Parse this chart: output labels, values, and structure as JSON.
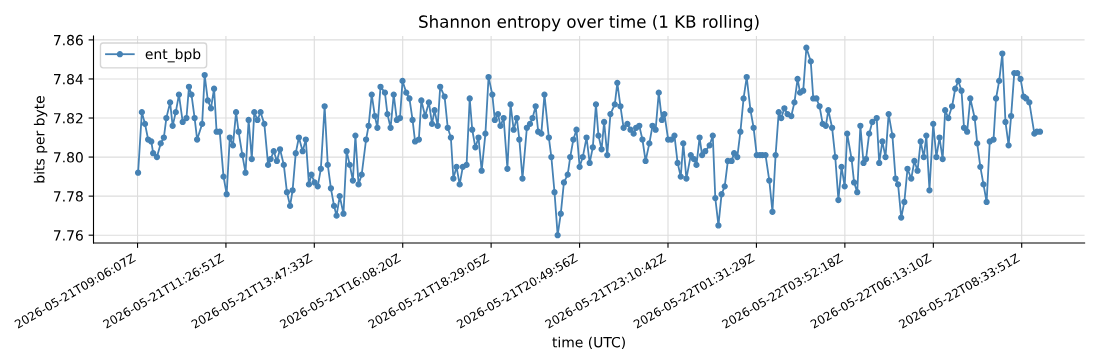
{
  "chart_data": {
    "type": "line",
    "title": "Shannon entropy over time (1 KB rolling)",
    "xlabel": "time (UTC)",
    "ylabel": "bits per byte",
    "xlim": [
      "2026-05-21T07:56",
      "2026-05-22T10:14"
    ],
    "ylim": [
      7.756,
      7.862
    ],
    "xticks": [
      {
        "value": "2026-05-21T09:06:07",
        "label": "2026-05-21T09:06:07Z"
      },
      {
        "value": "2026-05-21T11:26:51",
        "label": "2026-05-21T11:26:51Z"
      },
      {
        "value": "2026-05-21T13:47:33",
        "label": "2026-05-21T13:47:33Z"
      },
      {
        "value": "2026-05-21T16:08:20",
        "label": "2026-05-21T16:08:20Z"
      },
      {
        "value": "2026-05-21T18:29:05",
        "label": "2026-05-21T18:29:05Z"
      },
      {
        "value": "2026-05-21T20:49:56",
        "label": "2026-05-21T20:49:56Z"
      },
      {
        "value": "2026-05-21T23:10:42",
        "label": "2026-05-21T23:10:42Z"
      },
      {
        "value": "2026-05-22T01:31:29",
        "label": "2026-05-22T01:31:29Z"
      },
      {
        "value": "2026-05-22T03:52:18",
        "label": "2026-05-22T03:52:18Z"
      },
      {
        "value": "2026-05-22T06:13:10",
        "label": "2026-05-22T06:13:10Z"
      },
      {
        "value": "2026-05-22T08:33:51",
        "label": "2026-05-22T08:33:51Z"
      }
    ],
    "yticks": [
      {
        "value": 7.76,
        "label": "7.76"
      },
      {
        "value": 7.78,
        "label": "7.78"
      },
      {
        "value": 7.8,
        "label": "7.80"
      },
      {
        "value": 7.82,
        "label": "7.82"
      },
      {
        "value": 7.84,
        "label": "7.84"
      },
      {
        "value": 7.86,
        "label": "7.86"
      }
    ],
    "grid": true,
    "legend": "top left",
    "marker": "circle",
    "line_style": "solid",
    "series": [
      {
        "name": "ent_bpb",
        "color": "#4682b4",
        "x": [
          "2026-05-21T09:07",
          "2026-05-21T09:13",
          "2026-05-21T09:18",
          "2026-05-21T09:23",
          "2026-05-21T09:28",
          "2026-05-21T09:31",
          "2026-05-21T09:37",
          "2026-05-21T09:43",
          "2026-05-21T09:48",
          "2026-05-21T09:52",
          "2026-05-21T09:58",
          "2026-05-21T10:02",
          "2026-05-21T10:07",
          "2026-05-21T10:12",
          "2026-05-21T10:18",
          "2026-05-21T10:24",
          "2026-05-21T10:28",
          "2026-05-21T10:32",
          "2026-05-21T10:37",
          "2026-05-21T10:41",
          "2026-05-21T10:49",
          "2026-05-21T10:53",
          "2026-05-21T10:58",
          "2026-05-21T11:03",
          "2026-05-21T11:08",
          "2026-05-21T11:12",
          "2026-05-21T11:17",
          "2026-05-21T11:23",
          "2026-05-21T11:28",
          "2026-05-21T11:33",
          "2026-05-21T11:38",
          "2026-05-21T11:43",
          "2026-05-21T11:47",
          "2026-05-21T11:53",
          "2026-05-21T11:58",
          "2026-05-21T12:03",
          "2026-05-21T12:08",
          "2026-05-21T12:12",
          "2026-05-21T12:17",
          "2026-05-21T12:22",
          "2026-05-21T12:28",
          "2026-05-21T12:34",
          "2026-05-21T12:38",
          "2026-05-21T12:43",
          "2026-05-21T12:48",
          "2026-05-21T12:53",
          "2026-05-21T12:59",
          "2026-05-21T13:04",
          "2026-05-21T13:09",
          "2026-05-21T13:13",
          "2026-05-21T13:18",
          "2026-05-21T13:23",
          "2026-05-21T13:29",
          "2026-05-21T13:34",
          "2026-05-21T13:39",
          "2026-05-21T13:43",
          "2026-05-21T13:48",
          "2026-05-21T13:53",
          "2026-05-21T13:58",
          "2026-05-21T14:04",
          "2026-05-21T14:09",
          "2026-05-21T14:14",
          "2026-05-21T14:19",
          "2026-05-21T14:23",
          "2026-05-21T14:28",
          "2026-05-21T14:34",
          "2026-05-21T14:39",
          "2026-05-21T14:44",
          "2026-05-21T14:49",
          "2026-05-21T14:53",
          "2026-05-21T14:58",
          "2026-05-21T15:03",
          "2026-05-21T15:10",
          "2026-05-21T15:14",
          "2026-05-21T15:19",
          "2026-05-21T15:24",
          "2026-05-21T15:28",
          "2026-05-21T15:33",
          "2026-05-21T15:40",
          "2026-05-21T15:44",
          "2026-05-21T15:49",
          "2026-05-21T15:54",
          "2026-05-21T15:59",
          "2026-05-21T16:04",
          "2026-05-21T16:08",
          "2026-05-21T16:14",
          "2026-05-21T16:19",
          "2026-05-21T16:24",
          "2026-05-21T16:28",
          "2026-05-21T16:34",
          "2026-05-21T16:38",
          "2026-05-21T16:44",
          "2026-05-21T16:50",
          "2026-05-21T16:55",
          "2026-05-21T16:59",
          "2026-05-21T17:04",
          "2026-05-21T17:08",
          "2026-05-21T17:15",
          "2026-05-21T17:20",
          "2026-05-21T17:25",
          "2026-05-21T17:29",
          "2026-05-21T17:34",
          "2026-05-21T17:39",
          "2026-05-21T17:44",
          "2026-05-21T17:50",
          "2026-05-21T17:55",
          "2026-05-21T17:59",
          "2026-05-21T18:04",
          "2026-05-21T18:09",
          "2026-05-21T18:14",
          "2026-05-21T18:20",
          "2026-05-21T18:25",
          "2026-05-21T18:31",
          "2026-05-21T18:35",
          "2026-05-21T18:40",
          "2026-05-21T18:44",
          "2026-05-21T18:49",
          "2026-05-21T18:55",
          "2026-05-21T19:00",
          "2026-05-21T19:05",
          "2026-05-21T19:10",
          "2026-05-21T19:14",
          "2026-05-21T19:19",
          "2026-05-21T19:26",
          "2026-05-21T19:31",
          "2026-05-21T19:35",
          "2026-05-21T19:40",
          "2026-05-21T19:44",
          "2026-05-21T19:49",
          "2026-05-21T19:54",
          "2026-05-21T20:01",
          "2026-05-21T20:05",
          "2026-05-21T20:10",
          "2026-05-21T20:15",
          "2026-05-21T20:20",
          "2026-05-21T20:25",
          "2026-05-21T20:31",
          "2026-05-21T20:35",
          "2026-05-21T20:40",
          "2026-05-21T20:45",
          "2026-05-21T20:50",
          "2026-05-21T20:55",
          "2026-05-21T21:01",
          "2026-05-21T21:06",
          "2026-05-21T21:11",
          "2026-05-21T21:16",
          "2026-05-21T21:20",
          "2026-05-21T21:25",
          "2026-05-21T21:29",
          "2026-05-21T21:34",
          "2026-05-21T21:39",
          "2026-05-21T21:46",
          "2026-05-21T21:50",
          "2026-05-21T21:55",
          "2026-05-21T22:00",
          "2026-05-21T22:06",
          "2026-05-21T22:11",
          "2026-05-21T22:16",
          "2026-05-21T22:20",
          "2026-05-21T22:25",
          "2026-05-21T22:30",
          "2026-05-21T22:35",
          "2026-05-21T22:41",
          "2026-05-21T22:46",
          "2026-05-21T22:51",
          "2026-05-21T22:56",
          "2026-05-21T23:01",
          "2026-05-21T23:05",
          "2026-05-21T23:11",
          "2026-05-21T23:16",
          "2026-05-21T23:21",
          "2026-05-21T23:26",
          "2026-05-21T23:31",
          "2026-05-21T23:35",
          "2026-05-21T23:40",
          "2026-05-21T23:47",
          "2026-05-21T23:52",
          "2026-05-21T23:56",
          "2026-05-22T00:01",
          "2026-05-22T00:05",
          "2026-05-22T00:10",
          "2026-05-22T00:17",
          "2026-05-22T00:22",
          "2026-05-22T00:26",
          "2026-05-22T00:31",
          "2026-05-22T00:36",
          "2026-05-22T00:41",
          "2026-05-22T00:46",
          "2026-05-22T00:52",
          "2026-05-22T00:56",
          "2026-05-22T01:01",
          "2026-05-22T01:06",
          "2026-05-22T01:11",
          "2026-05-22T01:16",
          "2026-05-22T01:22",
          "2026-05-22T01:27",
          "2026-05-22T01:32",
          "2026-05-22T01:37",
          "2026-05-22T01:41",
          "2026-05-22T01:46",
          "2026-05-22T01:52",
          "2026-05-22T01:57",
          "2026-05-22T02:02",
          "2026-05-22T02:07",
          "2026-05-22T02:11",
          "2026-05-22T02:16",
          "2026-05-22T02:21",
          "2026-05-22T02:27",
          "2026-05-22T02:32",
          "2026-05-22T02:37",
          "2026-05-22T02:41",
          "2026-05-22T02:46",
          "2026-05-22T02:51",
          "2026-05-22T02:58",
          "2026-05-22T03:02",
          "2026-05-22T03:07",
          "2026-05-22T03:12",
          "2026-05-22T03:17",
          "2026-05-22T03:22",
          "2026-05-22T03:26",
          "2026-05-22T03:32",
          "2026-05-22T03:37",
          "2026-05-22T03:42",
          "2026-05-22T03:47",
          "2026-05-22T03:52",
          "2026-05-22T03:56",
          "2026-05-22T04:03",
          "2026-05-22T04:07",
          "2026-05-22T04:12",
          "2026-05-22T04:17",
          "2026-05-22T04:22",
          "2026-05-22T04:26",
          "2026-05-22T04:31",
          "2026-05-22T04:36",
          "2026-05-22T04:43",
          "2026-05-22T04:47",
          "2026-05-22T04:52",
          "2026-05-22T04:57",
          "2026-05-22T05:02",
          "2026-05-22T05:08",
          "2026-05-22T05:13",
          "2026-05-22T05:17",
          "2026-05-22T05:22",
          "2026-05-22T05:27",
          "2026-05-22T05:32",
          "2026-05-22T05:38",
          "2026-05-22T05:43",
          "2026-05-22T05:48",
          "2026-05-22T05:53",
          "2026-05-22T05:58",
          "2026-05-22T06:02",
          "2026-05-22T06:07",
          "2026-05-22T06:13",
          "2026-05-22T06:18",
          "2026-05-22T06:23",
          "2026-05-22T06:28",
          "2026-05-22T06:32",
          "2026-05-22T06:37",
          "2026-05-22T06:43",
          "2026-05-22T06:48",
          "2026-05-22T06:53",
          "2026-05-22T06:58",
          "2026-05-22T07:02",
          "2026-05-22T07:07",
          "2026-05-22T07:12",
          "2026-05-22T07:19",
          "2026-05-22T07:23",
          "2026-05-22T07:28",
          "2026-05-22T07:33",
          "2026-05-22T07:38",
          "2026-05-22T07:43",
          "2026-05-22T07:49",
          "2026-05-22T07:53",
          "2026-05-22T07:58",
          "2026-05-22T08:03",
          "2026-05-22T08:08",
          "2026-05-22T08:13",
          "2026-05-22T08:17",
          "2026-05-22T08:22",
          "2026-05-22T08:27",
          "2026-05-22T08:32",
          "2026-05-22T08:37",
          "2026-05-22T08:41",
          "2026-05-22T08:46",
          "2026-05-22T08:54",
          "2026-05-22T08:58",
          "2026-05-22T09:03"
        ],
        "values": [
          7.792,
          7.823,
          7.817,
          7.809,
          7.808,
          7.802,
          7.8,
          7.807,
          7.81,
          7.82,
          7.828,
          7.816,
          7.823,
          7.832,
          7.818,
          7.82,
          7.836,
          7.832,
          7.82,
          7.809,
          7.817,
          7.842,
          7.829,
          7.825,
          7.835,
          7.813,
          7.813,
          7.79,
          7.781,
          7.81,
          7.806,
          7.823,
          7.813,
          7.801,
          7.792,
          7.819,
          7.799,
          7.823,
          7.819,
          7.823,
          7.817,
          7.796,
          7.799,
          7.803,
          7.798,
          7.804,
          7.796,
          7.782,
          7.775,
          7.783,
          7.802,
          7.81,
          7.803,
          7.809,
          7.786,
          7.791,
          7.787,
          7.785,
          7.794,
          7.826,
          7.796,
          7.784,
          7.775,
          7.77,
          7.78,
          7.771,
          7.803,
          7.796,
          7.788,
          7.811,
          7.786,
          7.791,
          7.809,
          7.816,
          7.832,
          7.821,
          7.815,
          7.836,
          7.833,
          7.822,
          7.815,
          7.832,
          7.819,
          7.82,
          7.839,
          7.833,
          7.83,
          7.819,
          7.808,
          7.809,
          7.829,
          7.821,
          7.828,
          7.817,
          7.824,
          7.816,
          7.836,
          7.831,
          7.815,
          7.81,
          7.789,
          7.795,
          7.786,
          7.795,
          7.796,
          7.83,
          7.814,
          7.805,
          7.81,
          7.793,
          7.812,
          7.841,
          7.832,
          7.819,
          7.822,
          7.816,
          7.82,
          7.794,
          7.827,
          7.814,
          7.82,
          7.809,
          7.789,
          7.815,
          7.817,
          7.82,
          7.826,
          7.813,
          7.812,
          7.832,
          7.81,
          7.8,
          7.782,
          7.76,
          7.771,
          7.787,
          7.791,
          7.8,
          7.809,
          7.814,
          7.795,
          7.8,
          7.81,
          7.797,
          7.805,
          7.827,
          7.811,
          7.804,
          7.818,
          7.801,
          7.822,
          7.827,
          7.838,
          7.826,
          7.815,
          7.817,
          7.814,
          7.812,
          7.815,
          7.816,
          7.809,
          7.798,
          7.807,
          7.816,
          7.814,
          7.833,
          7.819,
          7.822,
          7.809,
          7.809,
          7.811,
          7.797,
          7.79,
          7.807,
          7.789,
          7.801,
          7.799,
          7.796,
          7.81,
          7.801,
          7.803,
          7.806,
          7.811,
          7.779,
          7.765,
          7.781,
          7.785,
          7.798,
          7.798,
          7.802,
          7.8,
          7.813,
          7.83,
          7.841,
          7.824,
          7.815,
          7.801,
          7.801,
          7.801,
          7.801,
          7.788,
          7.772,
          7.801,
          7.823,
          7.82,
          7.825,
          7.822,
          7.821,
          7.828,
          7.84,
          7.833,
          7.834,
          7.856,
          7.849,
          7.83,
          7.83,
          7.826,
          7.817,
          7.816,
          7.824,
          7.815,
          7.8,
          7.778,
          7.795,
          7.785,
          7.812,
          7.799,
          7.787,
          7.782,
          7.816,
          7.797,
          7.799,
          7.812,
          7.818,
          7.82,
          7.797,
          7.808,
          7.8,
          7.822,
          7.811,
          7.789,
          7.786,
          7.769,
          7.777,
          7.794,
          7.789,
          7.798,
          7.793,
          7.808,
          7.8,
          7.811,
          7.783,
          7.817,
          7.8,
          7.81,
          7.799,
          7.824,
          7.82,
          7.826,
          7.835,
          7.839,
          7.834,
          7.815,
          7.813,
          7.83,
          7.82,
          7.807,
          7.795,
          7.786,
          7.777,
          7.808,
          7.809,
          7.83,
          7.839,
          7.853,
          7.818,
          7.806,
          7.821,
          7.843,
          7.843,
          7.84,
          7.831,
          7.83,
          7.828,
          7.812,
          7.813,
          7.813
        ]
      }
    ]
  }
}
